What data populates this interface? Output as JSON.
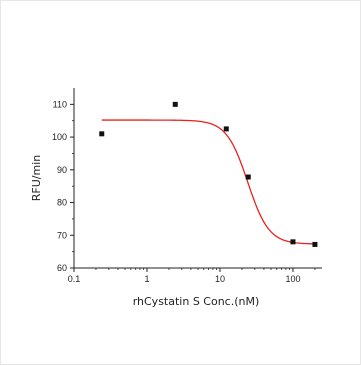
{
  "chart_data": {
    "type": "scatter",
    "title": "",
    "xlabel": "rhCystatin S Conc.(nM)",
    "ylabel": "RFU/min",
    "x_scale": "log",
    "xlim": [
      0.1,
      250
    ],
    "ylim": [
      60,
      115
    ],
    "x_ticks": [
      0.1,
      1,
      10,
      100
    ],
    "x_tick_labels": [
      "0.1",
      "1",
      "10",
      "100"
    ],
    "y_ticks": [
      60,
      70,
      80,
      90,
      100,
      110
    ],
    "y_tick_labels": [
      "60",
      "70",
      "80",
      "90",
      "100",
      "110"
    ],
    "grid": false,
    "series": [
      {
        "x": [
          0.24,
          2.44,
          12.2,
          24.4,
          100,
          200
        ],
        "y": [
          101,
          110,
          102.5,
          87.8,
          68,
          67.2
        ],
        "marker": "square",
        "color": "#111111"
      }
    ],
    "fit_curve": {
      "type": "4PL",
      "color": "#e8221e",
      "top": 105.2,
      "bottom": 67.3,
      "ec50": 24,
      "hill": 3
    }
  }
}
